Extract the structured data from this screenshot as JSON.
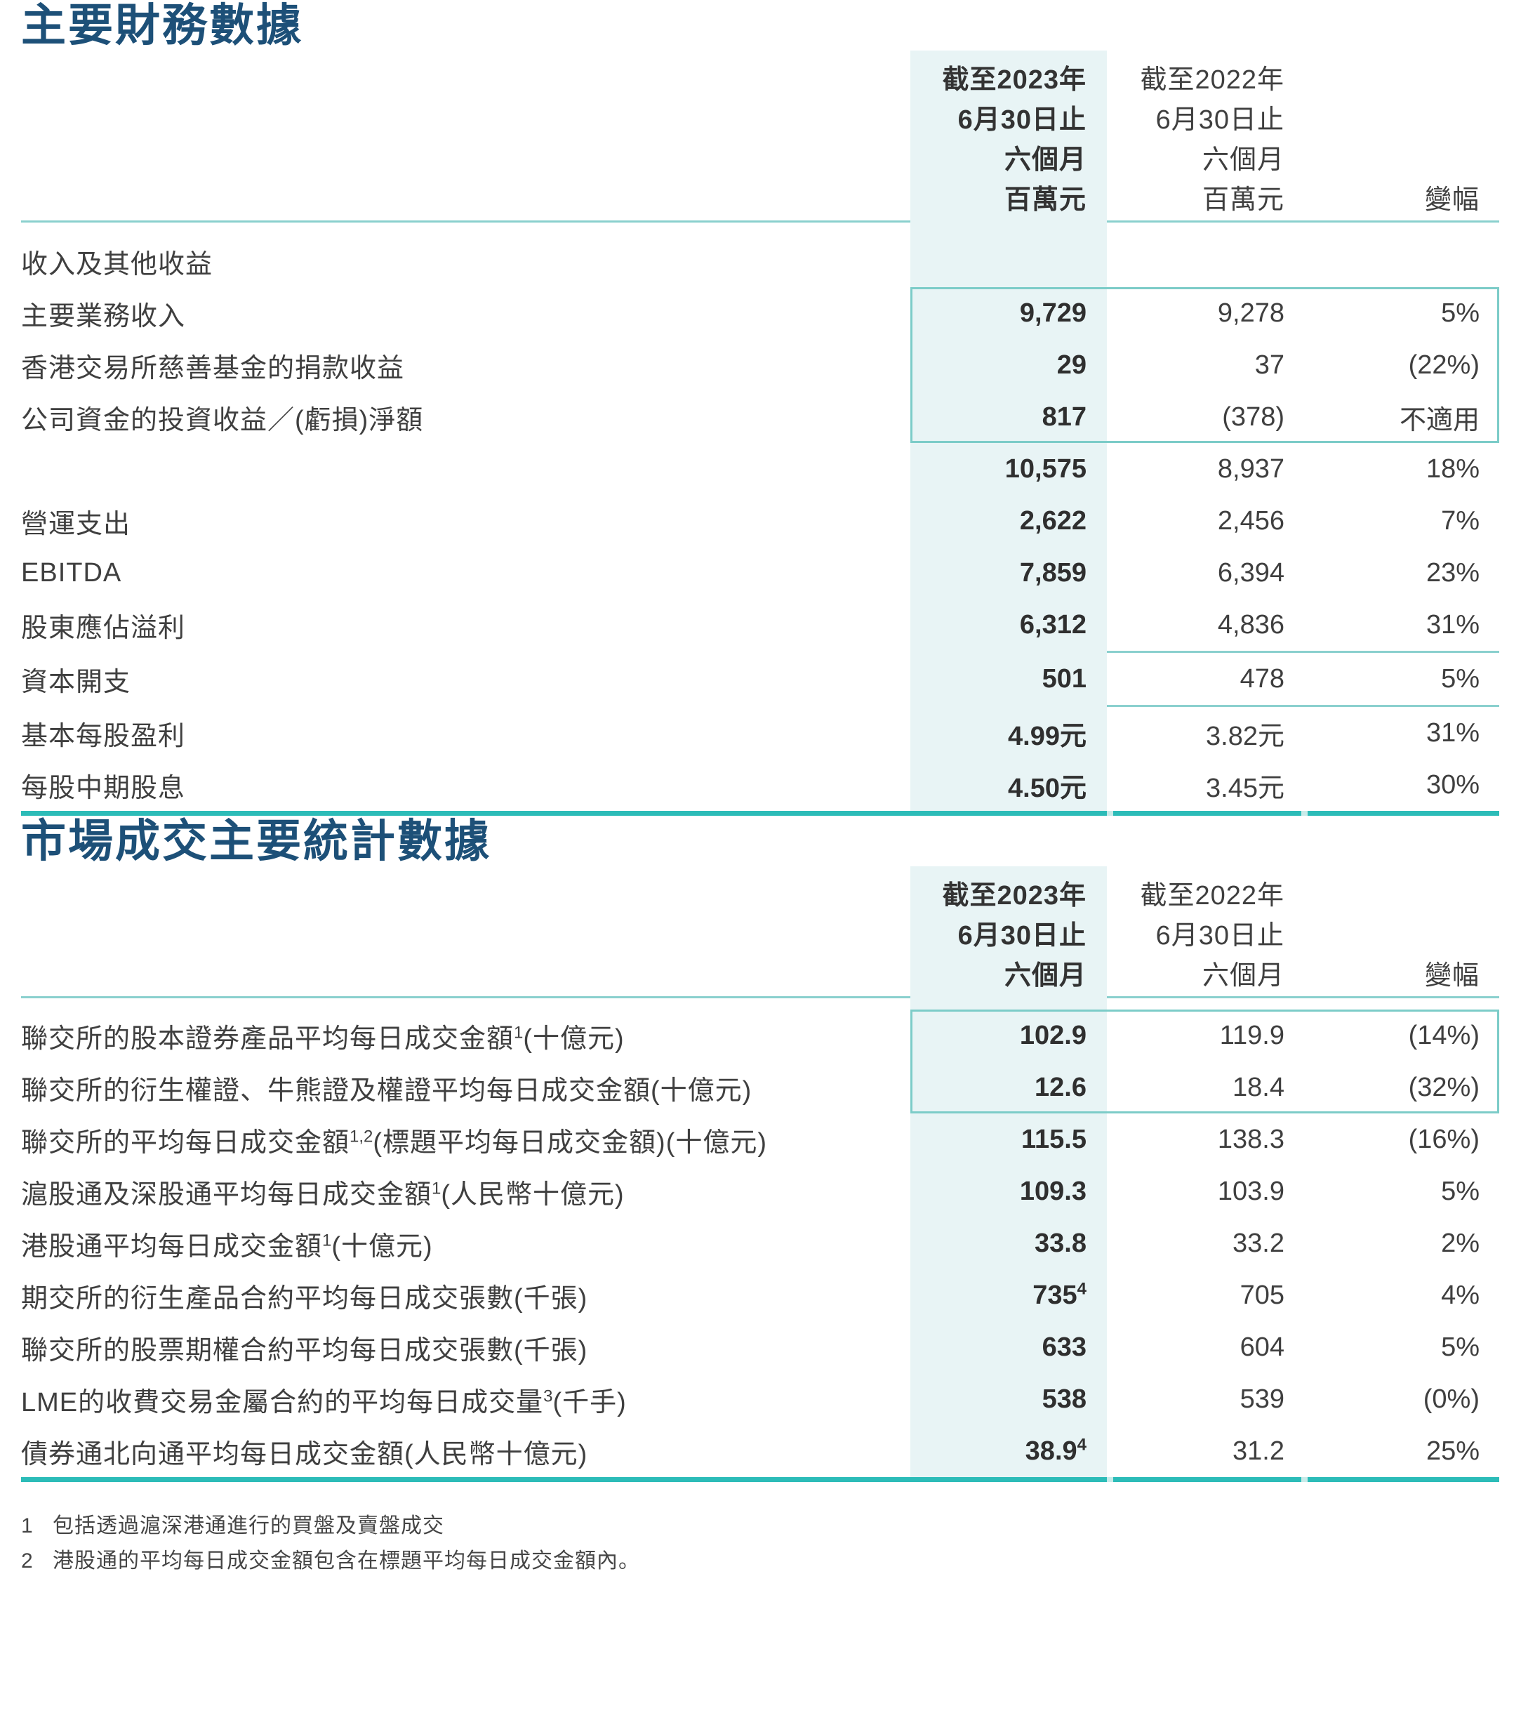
{
  "colors": {
    "title_blue": "#1d5078",
    "highlight_bg": "#e8f4f5",
    "thin_rule": "#8ad0ce",
    "thick_rule": "#2cbcb8",
    "box_border": "#7cccc8"
  },
  "s1": {
    "title": "主要財務數據",
    "header": {
      "y2023": [
        "截至2023年",
        "6月30日止",
        "六個月",
        "百萬元"
      ],
      "y2022": [
        "截至2022年",
        "6月30日止",
        "六個月",
        "百萬元"
      ],
      "change": "變幅"
    },
    "group": "收入及其他收益",
    "rows": [
      {
        "label": "主要業務收入",
        "v2023": "9,729",
        "v2022": "9,278",
        "change": "5%"
      },
      {
        "label": "香港交易所慈善基金的捐款收益",
        "v2023": "29",
        "v2022": "37",
        "change": "(22%)"
      },
      {
        "label": "公司資金的投資收益／(虧損)淨額",
        "v2023": "817",
        "v2022": "(378)",
        "change": "不適用"
      },
      {
        "label": "",
        "v2023": "10,575",
        "v2022": "8,937",
        "change": "18%"
      },
      {
        "label": "營運支出",
        "v2023": "2,622",
        "v2022": "2,456",
        "change": "7%"
      },
      {
        "label": "EBITDA",
        "v2023": "7,859",
        "v2022": "6,394",
        "change": "23%"
      },
      {
        "label": "股東應佔溢利",
        "v2023": "6,312",
        "v2022": "4,836",
        "change": "31%"
      },
      {
        "label": "資本開支",
        "v2023": "501",
        "v2022": "478",
        "change": "5%"
      },
      {
        "label": "基本每股盈利",
        "v2023": "4.99元",
        "v2022": "3.82元",
        "change": "31%"
      },
      {
        "label": "每股中期股息",
        "v2023": "4.50元",
        "v2022": "3.45元",
        "change": "30%"
      }
    ]
  },
  "s2": {
    "title": "市場成交主要統計數據",
    "header": {
      "y2023": [
        "截至2023年",
        "6月30日止",
        "六個月"
      ],
      "y2022": [
        "截至2022年",
        "6月30日止",
        "六個月"
      ],
      "change": "變幅"
    },
    "rows": [
      {
        "label": "聯交所的股本證券產品平均每日成交金額",
        "sup": "1",
        "tail": "(十億元)",
        "v2023": "102.9",
        "vsup": "",
        "v2022": "119.9",
        "change": "(14%)"
      },
      {
        "label": "聯交所的衍生權證、牛熊證及權證平均每日成交金額(十億元)",
        "sup": "",
        "tail": "",
        "v2023": "12.6",
        "vsup": "",
        "v2022": "18.4",
        "change": "(32%)"
      },
      {
        "label": "聯交所的平均每日成交金額",
        "sup": "1,2",
        "tail": "(標題平均每日成交金額)(十億元)",
        "v2023": "115.5",
        "vsup": "",
        "v2022": "138.3",
        "change": "(16%)"
      },
      {
        "label": "滬股通及深股通平均每日成交金額",
        "sup": "1",
        "tail": "(人民幣十億元)",
        "v2023": "109.3",
        "vsup": "",
        "v2022": "103.9",
        "change": "5%"
      },
      {
        "label": "港股通平均每日成交金額",
        "sup": "1",
        "tail": "(十億元)",
        "v2023": "33.8",
        "vsup": "",
        "v2022": "33.2",
        "change": "2%"
      },
      {
        "label": "期交所的衍生產品合約平均每日成交張數(千張)",
        "sup": "",
        "tail": "",
        "v2023": "735",
        "vsup": "4",
        "v2022": "705",
        "change": "4%"
      },
      {
        "label": "聯交所的股票期權合約平均每日成交張數(千張)",
        "sup": "",
        "tail": "",
        "v2023": "633",
        "vsup": "",
        "v2022": "604",
        "change": "5%"
      },
      {
        "label": "LME的收費交易金屬合約的平均每日成交量",
        "sup": "3",
        "tail": "(千手)",
        "v2023": "538",
        "vsup": "",
        "v2022": "539",
        "change": "(0%)"
      },
      {
        "label": "債券通北向通平均每日成交金額(人民幣十億元)",
        "sup": "",
        "tail": "",
        "v2023": "38.9",
        "vsup": "4",
        "v2022": "31.2",
        "change": "25%"
      }
    ],
    "footnotes": [
      {
        "n": "1",
        "t": "包括透過滬深港通進行的買盤及賣盤成交"
      },
      {
        "n": "2",
        "t": "港股通的平均每日成交金額包含在標題平均每日成交金額內。"
      }
    ]
  }
}
